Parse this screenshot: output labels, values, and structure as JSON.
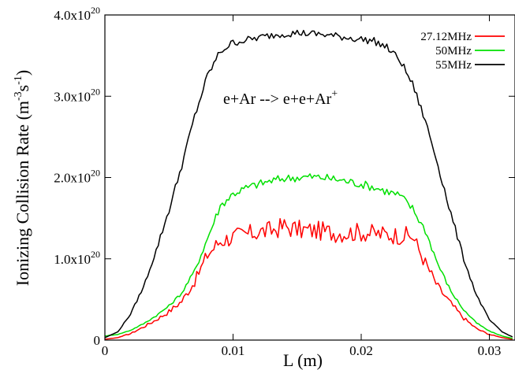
{
  "chart_data": {
    "type": "line",
    "xlabel": "L (m)",
    "ylabel": "Ionizing Collision Rate (m-3s-1)",
    "ylabel_parts": {
      "main": "Ionizing Collision Rate (m",
      "exp1": "-3",
      "mid": "s",
      "exp2": "-1",
      "end": ")"
    },
    "xlim": [
      0,
      0.032
    ],
    "ylim": [
      0,
      4e+20
    ],
    "x_ticks": [
      {
        "value": 0,
        "label": "0"
      },
      {
        "value": 0.01,
        "label": "0.01"
      },
      {
        "value": 0.02,
        "label": "0.02"
      },
      {
        "value": 0.03,
        "label": "0.03"
      }
    ],
    "y_ticks": [
      {
        "value": 0,
        "mantissa": "0",
        "exp": ""
      },
      {
        "value": 1e+20,
        "mantissa": "1.0x10",
        "exp": "20"
      },
      {
        "value": 2e+20,
        "mantissa": "2.0x10",
        "exp": "20"
      },
      {
        "value": 3e+20,
        "mantissa": "3.0x10",
        "exp": "20"
      },
      {
        "value": 4e+20,
        "mantissa": "4.0x10",
        "exp": "20"
      }
    ],
    "annotation": {
      "main": "e+Ar --> e+e+Ar",
      "sup": "+"
    },
    "legend_position": "top-right",
    "series": [
      {
        "name": "27.12MHz",
        "color": "#ff0000",
        "x": [
          0,
          0.001,
          0.002,
          0.003,
          0.004,
          0.005,
          0.006,
          0.007,
          0.008,
          0.009,
          0.01,
          0.011,
          0.012,
          0.013,
          0.014,
          0.015,
          0.016,
          0.017,
          0.018,
          0.019,
          0.02,
          0.021,
          0.022,
          0.023,
          0.024,
          0.025,
          0.026,
          0.027,
          0.028,
          0.029,
          0.03,
          0.031,
          0.0318
        ],
        "y": [
          1e+18,
          3e+18,
          8e+18,
          1.6e+19,
          2.5e+19,
          3.5e+19,
          4.8e+19,
          7.2e+19,
          1.05e+20,
          1.22e+20,
          1.27e+20,
          1.3e+20,
          1.33e+20,
          1.35e+20,
          1.4e+20,
          1.36e+20,
          1.35e+20,
          1.34e+20,
          1.32e+20,
          1.32e+20,
          1.33e+20,
          1.31e+20,
          1.3e+20,
          1.29e+20,
          1.28e+20,
          9.5e+19,
          6.5e+19,
          4.5e+19,
          2.7e+19,
          1.4e+19,
          7e+18,
          3e+18,
          1e+18
        ]
      },
      {
        "name": "50MHz",
        "color": "#00e000",
        "x": [
          0,
          0.001,
          0.002,
          0.003,
          0.004,
          0.005,
          0.006,
          0.007,
          0.008,
          0.009,
          0.01,
          0.011,
          0.012,
          0.013,
          0.014,
          0.015,
          0.016,
          0.017,
          0.018,
          0.019,
          0.02,
          0.021,
          0.022,
          0.023,
          0.024,
          0.025,
          0.026,
          0.027,
          0.028,
          0.029,
          0.03,
          0.031,
          0.0318
        ],
        "y": [
          5e+18,
          7e+18,
          1.2e+19,
          2e+19,
          3e+19,
          4.2e+19,
          5.8e+19,
          8.5e+19,
          1.25e+20,
          1.65e+20,
          1.8e+20,
          1.87e+20,
          1.92e+20,
          1.96e+20,
          1.99e+20,
          2e+20,
          2.01e+20,
          2e+20,
          1.98e+20,
          1.95e+20,
          1.92e+20,
          1.88e+20,
          1.83e+20,
          1.78e+20,
          1.62e+20,
          1.35e+20,
          9.3e+19,
          6e+19,
          3.7e+19,
          2.1e+19,
          1.1e+19,
          5e+18,
          2e+18
        ]
      },
      {
        "name": "55MHz",
        "color": "#000000",
        "x": [
          0,
          0.001,
          0.002,
          0.003,
          0.004,
          0.005,
          0.006,
          0.007,
          0.008,
          0.009,
          0.01,
          0.011,
          0.012,
          0.013,
          0.014,
          0.015,
          0.016,
          0.017,
          0.018,
          0.019,
          0.02,
          0.021,
          0.022,
          0.023,
          0.024,
          0.025,
          0.026,
          0.027,
          0.028,
          0.029,
          0.03,
          0.031,
          0.0318
        ],
        "y": [
          3e+18,
          1e+19,
          3.2e+19,
          6.5e+19,
          1.1e+20,
          1.6e+20,
          2.15e+20,
          2.75e+20,
          3.25e+20,
          3.55e+20,
          3.66e+20,
          3.69e+20,
          3.72e+20,
          3.75e+20,
          3.77e+20,
          3.78e+20,
          3.77e+20,
          3.76e+20,
          3.74e+20,
          3.72e+20,
          3.7e+20,
          3.68e+20,
          3.6e+20,
          3.45e+20,
          3.15e+20,
          2.7e+20,
          2.15e+20,
          1.55e+20,
          1e+20,
          5.5e+19,
          2.5e+19,
          1e+19,
          4e+18
        ]
      }
    ]
  }
}
